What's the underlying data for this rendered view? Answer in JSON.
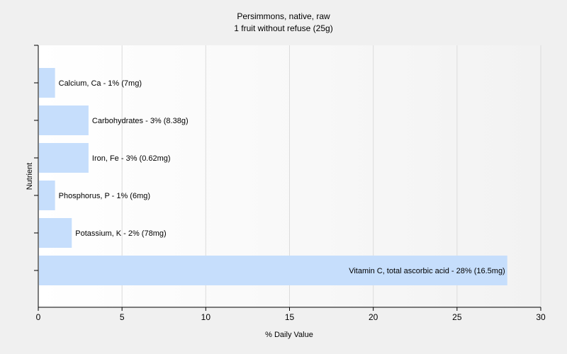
{
  "chart_data": {
    "type": "bar",
    "orientation": "horizontal",
    "title": "Persimmons, native, raw",
    "subtitle": "1 fruit without refuse (25g)",
    "xlabel": "% Daily Value",
    "ylabel": "Nutrient",
    "xlim": [
      0,
      30
    ],
    "xticks": [
      0,
      5,
      10,
      15,
      20,
      25,
      30
    ],
    "grid": true,
    "categories": [
      "Calcium, Ca",
      "Carbohydrates",
      "Iron, Fe",
      "Phosphorus, P",
      "Potassium, K",
      "Vitamin C, total ascorbic acid"
    ],
    "values": [
      1,
      3,
      3,
      1,
      2,
      28
    ],
    "labels": [
      "Calcium, Ca - 1% (7mg)",
      "Carbohydrates - 3% (8.38g)",
      "Iron, Fe - 3% (0.62mg)",
      "Phosphorus, P - 1% (6mg)",
      "Potassium, K - 2% (78mg)",
      "Vitamin C, total ascorbic acid - 28% (16.5mg)"
    ],
    "colors": {
      "bar": "#c6defc",
      "grid": "#dcdcdc",
      "axis": "#000000",
      "plot_bg": "#ffffff",
      "page_bg": "#f0f0f0"
    }
  }
}
